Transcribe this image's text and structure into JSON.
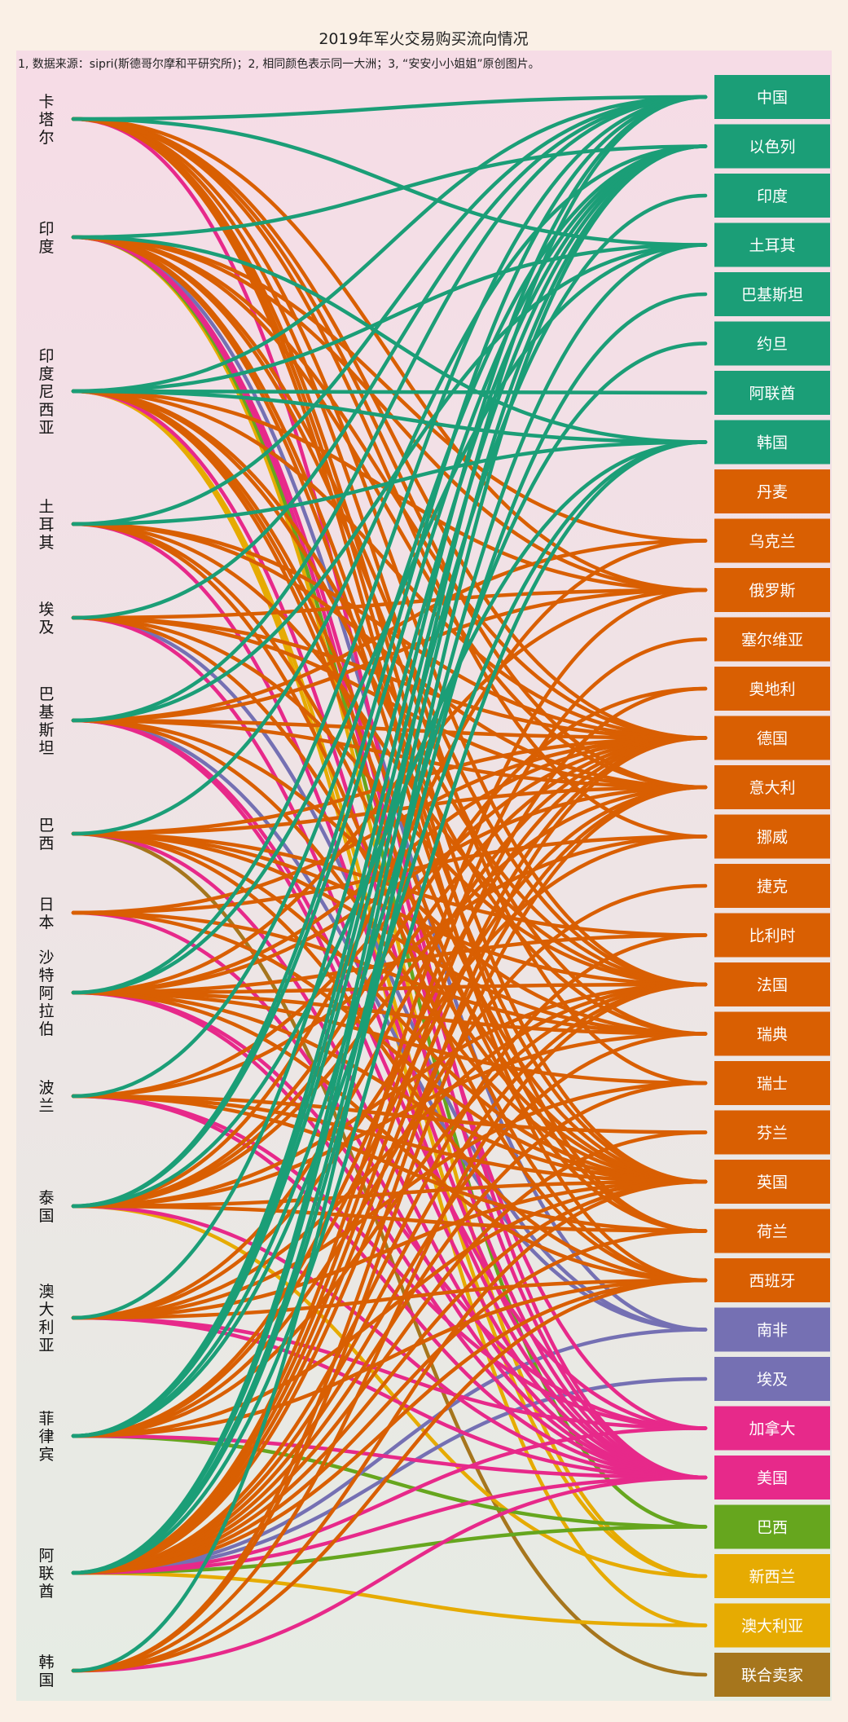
{
  "chart_data": {
    "type": "sankey",
    "title": "2019年军火交易购买流向情况",
    "subtitle": "1, 数据来源：sipri(斯德哥尔摩和平研究所)；2, 相同颜色表示同一大洲；3, “安安小小姐姐”原创图片。",
    "buyers": [
      "卡塔尔",
      "印度",
      "印度尼西亚",
      "土耳其",
      "埃及",
      "巴基斯坦",
      "巴西",
      "日本",
      "沙特阿拉伯",
      "波兰",
      "泰国",
      "澳大利亚",
      "菲律宾",
      "阿联酋",
      "韩国"
    ],
    "sellers": [
      {
        "name": "中国",
        "group": "asia"
      },
      {
        "name": "以色列",
        "group": "asia"
      },
      {
        "name": "印度",
        "group": "asia"
      },
      {
        "name": "土耳其",
        "group": "asia"
      },
      {
        "name": "巴基斯坦",
        "group": "asia"
      },
      {
        "name": "约旦",
        "group": "asia"
      },
      {
        "name": "阿联酋",
        "group": "asia"
      },
      {
        "name": "韩国",
        "group": "asia"
      },
      {
        "name": "丹麦",
        "group": "europe"
      },
      {
        "name": "乌克兰",
        "group": "europe"
      },
      {
        "name": "俄罗斯",
        "group": "europe"
      },
      {
        "name": "塞尔维亚",
        "group": "europe"
      },
      {
        "name": "奥地利",
        "group": "europe"
      },
      {
        "name": "德国",
        "group": "europe"
      },
      {
        "name": "意大利",
        "group": "europe"
      },
      {
        "name": "挪威",
        "group": "europe"
      },
      {
        "name": "捷克",
        "group": "europe"
      },
      {
        "name": "比利时",
        "group": "europe"
      },
      {
        "name": "法国",
        "group": "europe"
      },
      {
        "name": "瑞典",
        "group": "europe"
      },
      {
        "name": "瑞士",
        "group": "europe"
      },
      {
        "name": "芬兰",
        "group": "europe"
      },
      {
        "name": "英国",
        "group": "europe"
      },
      {
        "name": "荷兰",
        "group": "europe"
      },
      {
        "name": "西班牙",
        "group": "europe"
      },
      {
        "name": "南非",
        "group": "africa"
      },
      {
        "name": "埃及",
        "group": "africa"
      },
      {
        "name": "加拿大",
        "group": "north_america"
      },
      {
        "name": "美国",
        "group": "north_america"
      },
      {
        "name": "巴西",
        "group": "south_america"
      },
      {
        "name": "新西兰",
        "group": "oceania"
      },
      {
        "name": "澳大利亚",
        "group": "oceania"
      },
      {
        "name": "联合卖家",
        "group": "other"
      }
    ],
    "group_colors": {
      "asia": "#1b9e77",
      "europe": "#d95f02",
      "africa": "#7570b3",
      "north_america": "#e7298a",
      "south_america": "#66a61e",
      "oceania": "#e6ab02",
      "other": "#a6761d"
    },
    "links": [
      [
        "卡塔尔",
        "中国"
      ],
      [
        "卡塔尔",
        "土耳其"
      ],
      [
        "卡塔尔",
        "俄罗斯"
      ],
      [
        "卡塔尔",
        "德国"
      ],
      [
        "卡塔尔",
        "意大利"
      ],
      [
        "卡塔尔",
        "法国"
      ],
      [
        "卡塔尔",
        "瑞士"
      ],
      [
        "卡塔尔",
        "英国"
      ],
      [
        "卡塔尔",
        "西班牙"
      ],
      [
        "卡塔尔",
        "美国"
      ],
      [
        "卡塔尔",
        "荷兰"
      ],
      [
        "卡塔尔",
        "挪威"
      ],
      [
        "印度",
        "以色列"
      ],
      [
        "印度",
        "韩国"
      ],
      [
        "印度",
        "俄罗斯"
      ],
      [
        "印度",
        "法国"
      ],
      [
        "印度",
        "德国"
      ],
      [
        "印度",
        "意大利"
      ],
      [
        "印度",
        "英国"
      ],
      [
        "印度",
        "瑞典"
      ],
      [
        "印度",
        "乌克兰"
      ],
      [
        "印度",
        "美国"
      ],
      [
        "印度",
        "加拿大"
      ],
      [
        "印度",
        "巴西"
      ],
      [
        "印度",
        "新西兰"
      ],
      [
        "印度",
        "南非"
      ],
      [
        "印度",
        "荷兰"
      ],
      [
        "印度尼西亚",
        "中国"
      ],
      [
        "印度尼西亚",
        "韩国"
      ],
      [
        "印度尼西亚",
        "阿联酋"
      ],
      [
        "印度尼西亚",
        "土耳其"
      ],
      [
        "印度尼西亚",
        "俄罗斯"
      ],
      [
        "印度尼西亚",
        "法国"
      ],
      [
        "印度尼西亚",
        "德国"
      ],
      [
        "印度尼西亚",
        "荷兰"
      ],
      [
        "印度尼西亚",
        "英国"
      ],
      [
        "印度尼西亚",
        "西班牙"
      ],
      [
        "印度尼西亚",
        "美国"
      ],
      [
        "印度尼西亚",
        "新西兰"
      ],
      [
        "印度尼西亚",
        "澳大利亚"
      ],
      [
        "印度尼西亚",
        "瑞典"
      ],
      [
        "土耳其",
        "中国"
      ],
      [
        "土耳其",
        "韩国"
      ],
      [
        "土耳其",
        "德国"
      ],
      [
        "土耳其",
        "意大利"
      ],
      [
        "土耳其",
        "西班牙"
      ],
      [
        "土耳其",
        "美国"
      ],
      [
        "土耳其",
        "英国"
      ],
      [
        "土耳其",
        "法国"
      ],
      [
        "埃及",
        "中国"
      ],
      [
        "埃及",
        "俄罗斯"
      ],
      [
        "埃及",
        "法国"
      ],
      [
        "埃及",
        "德国"
      ],
      [
        "埃及",
        "意大利"
      ],
      [
        "埃及",
        "美国"
      ],
      [
        "埃及",
        "南非"
      ],
      [
        "埃及",
        "英国"
      ],
      [
        "巴基斯坦",
        "中国"
      ],
      [
        "巴基斯坦",
        "土耳其"
      ],
      [
        "巴基斯坦",
        "俄罗斯"
      ],
      [
        "巴基斯坦",
        "乌克兰"
      ],
      [
        "巴基斯坦",
        "意大利"
      ],
      [
        "巴基斯坦",
        "瑞典"
      ],
      [
        "巴基斯坦",
        "英国"
      ],
      [
        "巴基斯坦",
        "美国"
      ],
      [
        "巴基斯坦",
        "南非"
      ],
      [
        "巴基斯坦",
        "加拿大"
      ],
      [
        "巴基斯坦",
        "德国"
      ],
      [
        "巴西",
        "以色列"
      ],
      [
        "巴西",
        "德国"
      ],
      [
        "巴西",
        "法国"
      ],
      [
        "巴西",
        "意大利"
      ],
      [
        "巴西",
        "瑞典"
      ],
      [
        "巴西",
        "英国"
      ],
      [
        "巴西",
        "美国"
      ],
      [
        "巴西",
        "西班牙"
      ],
      [
        "巴西",
        "联合卖家"
      ],
      [
        "巴西",
        "比利时"
      ],
      [
        "日本",
        "美国"
      ],
      [
        "日本",
        "英国"
      ],
      [
        "日本",
        "瑞典"
      ],
      [
        "日本",
        "挪威"
      ],
      [
        "日本",
        "德国"
      ],
      [
        "沙特阿拉伯",
        "中国"
      ],
      [
        "沙特阿拉伯",
        "土耳其"
      ],
      [
        "沙特阿拉伯",
        "俄罗斯"
      ],
      [
        "沙特阿拉伯",
        "德国"
      ],
      [
        "沙特阿拉伯",
        "法国"
      ],
      [
        "沙特阿拉伯",
        "意大利"
      ],
      [
        "沙特阿拉伯",
        "瑞典"
      ],
      [
        "沙特阿拉伯",
        "瑞士"
      ],
      [
        "沙特阿拉伯",
        "英国"
      ],
      [
        "沙特阿拉伯",
        "西班牙"
      ],
      [
        "沙特阿拉伯",
        "美国"
      ],
      [
        "沙特阿拉伯",
        "加拿大"
      ],
      [
        "沙特阿拉伯",
        "比利时"
      ],
      [
        "波兰",
        "以色列"
      ],
      [
        "波兰",
        "德国"
      ],
      [
        "波兰",
        "挪威"
      ],
      [
        "波兰",
        "英国"
      ],
      [
        "波兰",
        "美国"
      ],
      [
        "波兰",
        "加拿大"
      ],
      [
        "波兰",
        "芬兰"
      ],
      [
        "波兰",
        "荷兰"
      ],
      [
        "泰国",
        "中国"
      ],
      [
        "泰国",
        "以色列"
      ],
      [
        "泰国",
        "韩国"
      ],
      [
        "泰国",
        "乌克兰"
      ],
      [
        "泰国",
        "德国"
      ],
      [
        "泰国",
        "意大利"
      ],
      [
        "泰国",
        "法国"
      ],
      [
        "泰国",
        "瑞典"
      ],
      [
        "泰国",
        "英国"
      ],
      [
        "泰国",
        "美国"
      ],
      [
        "泰国",
        "新西兰"
      ],
      [
        "泰国",
        "奥地利"
      ],
      [
        "泰国",
        "荷兰"
      ],
      [
        "澳大利亚",
        "以色列"
      ],
      [
        "澳大利亚",
        "德国"
      ],
      [
        "澳大利亚",
        "法国"
      ],
      [
        "澳大利亚",
        "西班牙"
      ],
      [
        "澳大利亚",
        "美国"
      ],
      [
        "澳大利亚",
        "加拿大"
      ],
      [
        "澳大利亚",
        "英国"
      ],
      [
        "澳大利亚",
        "瑞士"
      ],
      [
        "澳大利亚",
        "挪威"
      ],
      [
        "菲律宾",
        "中国"
      ],
      [
        "菲律宾",
        "以色列"
      ],
      [
        "菲律宾",
        "韩国"
      ],
      [
        "菲律宾",
        "印度"
      ],
      [
        "菲律宾",
        "约旦"
      ],
      [
        "菲律宾",
        "德国"
      ],
      [
        "菲律宾",
        "意大利"
      ],
      [
        "菲律宾",
        "法国"
      ],
      [
        "菲律宾",
        "英国"
      ],
      [
        "菲律宾",
        "美国"
      ],
      [
        "菲律宾",
        "巴西"
      ],
      [
        "菲律宾",
        "捷克"
      ],
      [
        "菲律宾",
        "西班牙"
      ],
      [
        "阿联酋",
        "中国"
      ],
      [
        "阿联酋",
        "以色列"
      ],
      [
        "阿联酋",
        "韩国"
      ],
      [
        "阿联酋",
        "土耳其"
      ],
      [
        "阿联酋",
        "巴基斯坦"
      ],
      [
        "阿联酋",
        "俄罗斯"
      ],
      [
        "阿联酋",
        "塞尔维亚"
      ],
      [
        "阿联酋",
        "德国"
      ],
      [
        "阿联酋",
        "意大利"
      ],
      [
        "阿联酋",
        "法国"
      ],
      [
        "阿联酋",
        "瑞典"
      ],
      [
        "阿联酋",
        "瑞士"
      ],
      [
        "阿联酋",
        "英国"
      ],
      [
        "阿联酋",
        "西班牙"
      ],
      [
        "阿联酋",
        "荷兰"
      ],
      [
        "阿联酋",
        "美国"
      ],
      [
        "阿联酋",
        "加拿大"
      ],
      [
        "阿联酋",
        "南非"
      ],
      [
        "阿联酋",
        "埃及"
      ],
      [
        "阿联酋",
        "巴西"
      ],
      [
        "阿联酋",
        "澳大利亚"
      ],
      [
        "阿联酋",
        "奥地利"
      ],
      [
        "阿联酋",
        "比利时"
      ],
      [
        "阿联酋",
        "芬兰"
      ],
      [
        "韩国",
        "以色列"
      ],
      [
        "韩国",
        "德国"
      ],
      [
        "韩国",
        "法国"
      ],
      [
        "韩国",
        "英国"
      ],
      [
        "韩国",
        "美国"
      ],
      [
        "韩国",
        "西班牙"
      ],
      [
        "韩国",
        "意大利"
      ]
    ]
  }
}
